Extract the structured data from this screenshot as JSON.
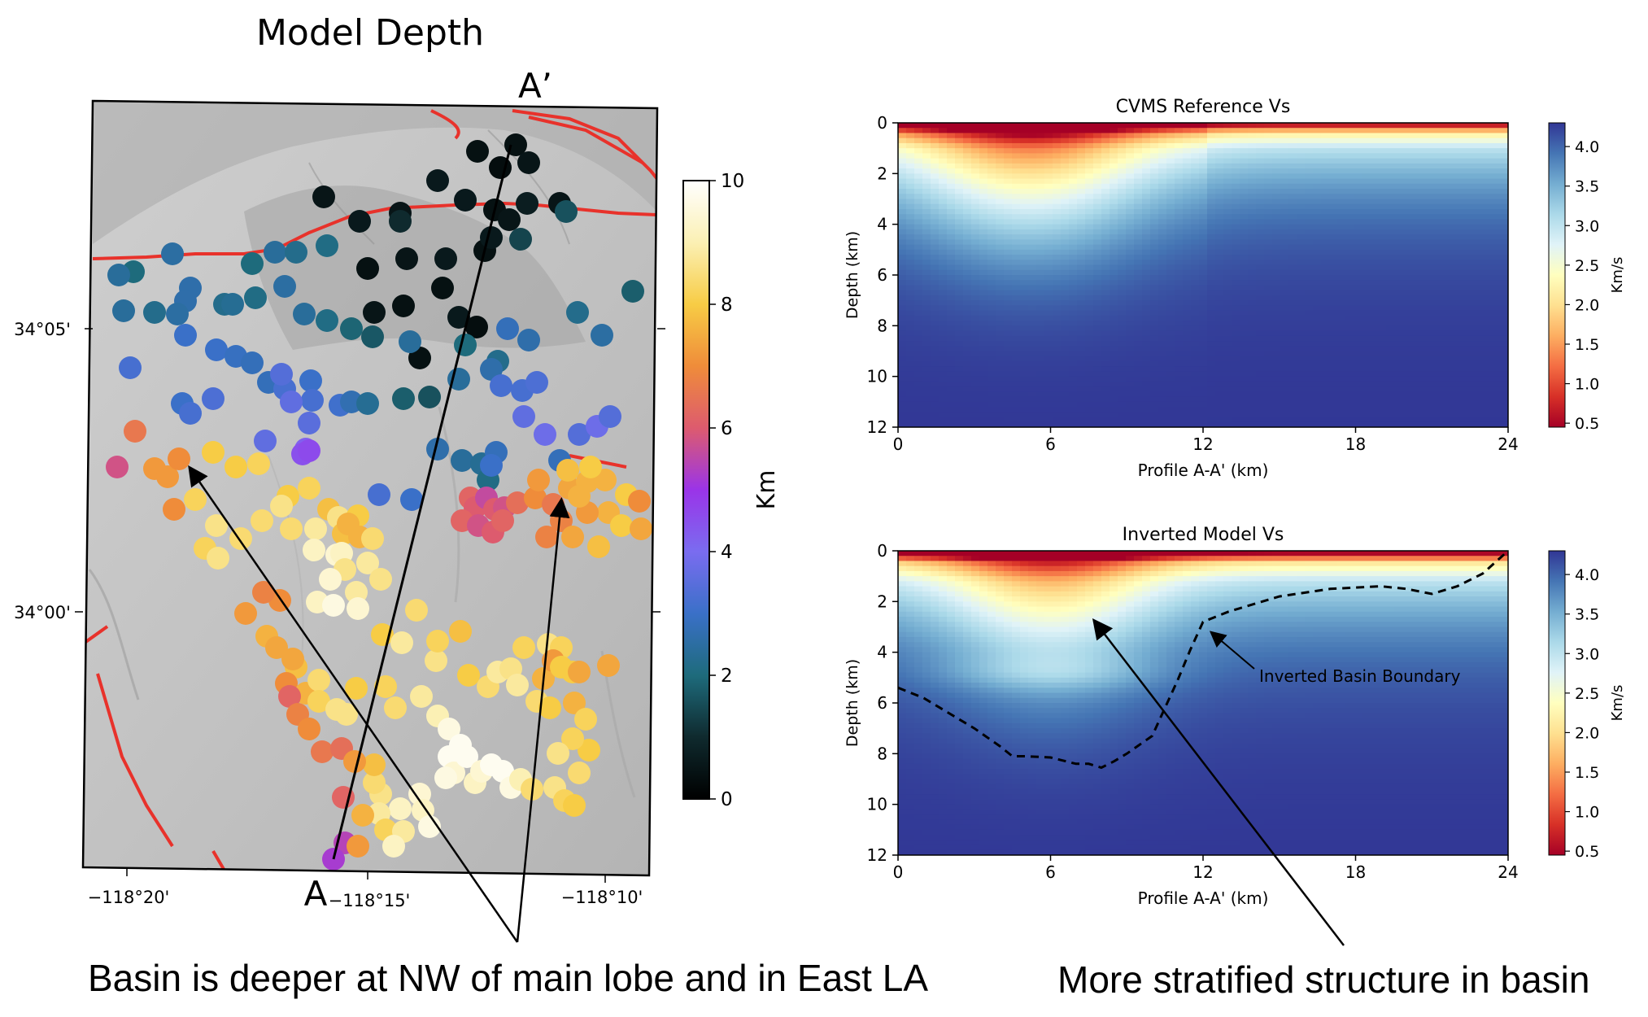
{
  "map": {
    "title": "Model Depth",
    "label_a": "A",
    "label_a_prime": "A’",
    "lat_ticks": [
      "34°05'",
      "34°00'"
    ],
    "lon_ticks": [
      "−118°20'",
      "−118°15'",
      "−118°10'"
    ],
    "colorbar": {
      "label": "Km",
      "ticks": [
        "0",
        "2",
        "4",
        "6",
        "8",
        "10"
      ],
      "range": [
        0,
        10
      ]
    },
    "colors": {
      "fault": "#e8322b",
      "relief": "#bdbdbd"
    }
  },
  "chart_data": [
    {
      "type": "heatmap",
      "title": "CVMS Reference Vs",
      "xlabel": "Profile A-A' (km)",
      "ylabel": "Depth (km)",
      "xlim": [
        0,
        24
      ],
      "ylim": [
        12,
        0
      ],
      "xticks": [
        "0",
        "6",
        "12",
        "18",
        "24"
      ],
      "yticks": [
        "0",
        "2",
        "4",
        "6",
        "8",
        "10",
        "12"
      ],
      "colorbar": {
        "label": "Km/s",
        "ticks": [
          "0.5",
          "1.0",
          "1.5",
          "2.0",
          "2.5",
          "3.0",
          "3.5",
          "4.0"
        ],
        "range": [
          0.45,
          4.3
        ]
      },
      "colormap": "RdYlBu"
    },
    {
      "type": "heatmap",
      "title": "Inverted Model Vs",
      "xlabel": "Profile A-A' (km)",
      "ylabel": "Depth (km)",
      "xlim": [
        0,
        24
      ],
      "ylim": [
        12,
        0
      ],
      "xticks": [
        "0",
        "6",
        "12",
        "18",
        "24"
      ],
      "yticks": [
        "0",
        "2",
        "4",
        "6",
        "8",
        "10",
        "12"
      ],
      "colorbar": {
        "label": "Km/s",
        "ticks": [
          "0.5",
          "1.0",
          "1.5",
          "2.0",
          "2.5",
          "3.0",
          "3.5",
          "4.0"
        ],
        "range": [
          0.45,
          4.3
        ]
      },
      "colormap": "RdYlBu",
      "annotation": "Inverted Basin Boundary",
      "basin_boundary": {
        "x": [
          0,
          1,
          2,
          3,
          4,
          4.5,
          5,
          6,
          7,
          7.5,
          8,
          8.5,
          9,
          10,
          10.5,
          11,
          11.5,
          12,
          13,
          15,
          17,
          19,
          20,
          21,
          22,
          23,
          24
        ],
        "depth": [
          5.4,
          5.8,
          6.4,
          7.0,
          7.7,
          8.1,
          8.1,
          8.15,
          8.4,
          8.4,
          8.55,
          8.3,
          8.0,
          7.3,
          6.2,
          5.1,
          3.9,
          2.8,
          2.4,
          1.8,
          1.5,
          1.4,
          1.5,
          1.7,
          1.4,
          0.9,
          0.0
        ]
      }
    }
  ],
  "captions": {
    "left": "Basin is deeper at NW of main lobe and in East LA",
    "right": "More stratified structure in basin"
  }
}
